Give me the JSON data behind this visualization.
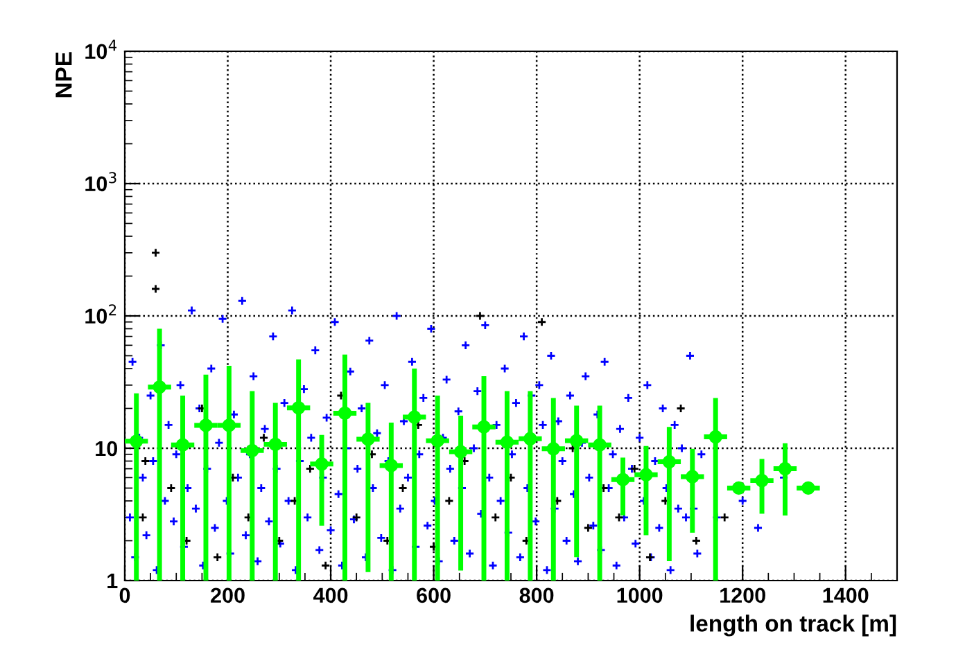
{
  "chart_data": {
    "type": "scatter",
    "xlabel": "length on track [m]",
    "ylabel": "NPE",
    "xlim": [
      0,
      1500
    ],
    "xticks": [
      0,
      200,
      400,
      600,
      800,
      1000,
      1200,
      1400
    ],
    "ylim": [
      1,
      10000
    ],
    "yticks": [
      1,
      10,
      {
        "value": 100,
        "label": "10$^{2}$"
      },
      {
        "value": 1000,
        "label": "10$^{3}$"
      },
      {
        "value": 10000,
        "label": "10$^{4}$"
      }
    ],
    "log": "y",
    "grid": true,
    "legend": false,
    "series": [
      {
        "marker": "cross",
        "color": "#0000ff",
        "x": [
          10,
          15,
          20,
          28,
          35,
          42,
          50,
          55,
          62,
          70,
          78,
          85,
          95,
          100,
          108,
          115,
          122,
          130,
          138,
          145,
          152,
          160,
          168,
          175,
          183,
          190,
          198,
          205,
          212,
          220,
          228,
          235,
          243,
          250,
          258,
          265,
          272,
          280,
          288,
          295,
          302,
          310,
          318,
          325,
          332,
          340,
          348,
          355,
          362,
          370,
          378,
          385,
          392,
          400,
          408,
          415,
          422,
          430,
          438,
          445,
          452,
          460,
          468,
          475,
          482,
          490,
          498,
          505,
          512,
          520,
          528,
          535,
          542,
          550,
          558,
          565,
          572,
          580,
          588,
          595,
          602,
          610,
          618,
          625,
          632,
          640,
          648,
          655,
          662,
          670,
          678,
          685,
          692,
          700,
          708,
          715,
          722,
          730,
          738,
          745,
          752,
          760,
          768,
          775,
          782,
          790,
          798,
          805,
          812,
          820,
          828,
          835,
          842,
          850,
          858,
          865,
          872,
          880,
          888,
          895,
          902,
          910,
          918,
          925,
          932,
          940,
          948,
          955,
          962,
          970,
          978,
          985,
          992,
          1000,
          1008,
          1015,
          1022,
          1030,
          1038,
          1045,
          1052,
          1060,
          1068,
          1075,
          1082,
          1090,
          1098,
          1105,
          1112,
          1120,
          1150,
          1200,
          1230,
          1280
        ],
        "values": [
          3,
          45,
          1.5,
          12,
          6,
          2.2,
          25,
          8,
          1.2,
          60,
          4,
          15,
          2.8,
          9,
          30,
          1.8,
          5,
          110,
          3.5,
          20,
          1.3,
          7,
          40,
          2.5,
          11,
          95,
          4,
          1.6,
          18,
          6,
          130,
          2.2,
          9,
          35,
          1.4,
          5,
          14,
          2.8,
          70,
          7,
          1.9,
          22,
          4,
          110,
          1.2,
          8,
          28,
          3,
          12,
          55,
          1.7,
          6,
          17,
          2.4,
          90,
          4.5,
          1.3,
          10,
          38,
          2.9,
          7,
          20,
          1.5,
          65,
          5,
          13,
          2.1,
          30,
          8,
          1.2,
          100,
          3.5,
          16,
          6,
          45,
          1.8,
          9,
          24,
          2.6,
          80,
          4,
          1.4,
          12,
          33,
          7,
          2,
          19,
          5,
          60,
          1.6,
          10,
          27,
          3.2,
          85,
          6,
          1.3,
          15,
          4,
          40,
          2.3,
          9,
          22,
          1.5,
          70,
          5,
          25,
          2.8,
          30,
          15,
          1.2,
          50,
          3.5,
          16,
          8,
          2,
          25,
          4.5,
          1.4,
          11,
          35,
          6,
          2.6,
          18,
          1.7,
          45,
          5,
          9,
          1.3,
          14,
          3,
          24,
          7,
          1.9,
          12,
          4,
          30,
          1.5,
          8,
          2.5,
          20,
          5,
          1.2,
          15,
          3.5,
          10,
          3,
          50,
          3.5,
          1.6,
          9,
          3,
          4,
          2.5,
          6
        ]
      },
      {
        "marker": "cross",
        "color": "#000000",
        "x": [
          60,
          60,
          35,
          40,
          90,
          120,
          150,
          180,
          210,
          240,
          270,
          300,
          330,
          360,
          390,
          420,
          450,
          480,
          510,
          540,
          570,
          600,
          630,
          660,
          690,
          720,
          750,
          780,
          810,
          840,
          870,
          900,
          930,
          960,
          990,
          1020,
          1050,
          1080,
          1110,
          1165
        ],
        "values": [
          300,
          160,
          3,
          8,
          5,
          2,
          20,
          1.5,
          6,
          3,
          12,
          2,
          4,
          7,
          1.3,
          25,
          3,
          9,
          2,
          5,
          15,
          1.8,
          4,
          8,
          100,
          3,
          6,
          2,
          90,
          4,
          10,
          2.5,
          5,
          3,
          7,
          1.5,
          4,
          20,
          2,
          3
        ]
      },
      {
        "marker": "circle",
        "color": "#00ff00",
        "x": [
          22.5,
          67.5,
          112.5,
          157.5,
          202.5,
          247.5,
          292.5,
          337.5,
          382.5,
          427.5,
          472.5,
          517.5,
          562.5,
          607.5,
          652.5,
          697.5,
          742.5,
          787.5,
          832.5,
          877.5,
          922.5,
          967.5,
          1012.5,
          1057.5,
          1102.5,
          1147.5,
          1192.5,
          1237.5,
          1282.5,
          1327.5
        ],
        "values": [
          11.3,
          29,
          10.6,
          14.9,
          14.9,
          9.6,
          10.7,
          20.2,
          7.6,
          18.4,
          11.7,
          7.4,
          17.2,
          11.4,
          9.4,
          14.5,
          11.1,
          11.8,
          9.9,
          11.4,
          10.6,
          5.8,
          6.3,
          7.9,
          6.1,
          12.2,
          5.0,
          5.7,
          7.0,
          5.0
        ],
        "errors": [
          [
            1,
            26
          ],
          [
            1,
            80
          ],
          [
            1,
            25
          ],
          [
            1,
            36
          ],
          [
            1,
            42
          ],
          [
            1,
            27
          ],
          [
            1,
            22
          ],
          [
            1,
            47
          ],
          [
            2.6,
            12.6
          ],
          [
            1,
            51
          ],
          [
            1.16,
            22
          ],
          [
            1,
            15.6
          ],
          [
            1,
            40
          ],
          [
            1,
            25
          ],
          [
            1.19,
            17.6
          ],
          [
            1,
            35
          ],
          [
            1,
            27
          ],
          [
            1,
            27
          ],
          [
            1,
            24
          ],
          [
            1.5,
            21
          ],
          [
            1,
            21
          ],
          [
            3.1,
            8.5
          ],
          [
            2.2,
            10.4
          ],
          [
            1.4,
            14.5
          ],
          [
            2.3,
            9.9
          ],
          [
            1,
            24
          ],
          null,
          [
            3.2,
            8.3
          ],
          [
            3.1,
            10.9
          ],
          null
        ],
        "xerrors": [
          22.5,
          22.5,
          22.5,
          22.5,
          22.5,
          22.5,
          22.5,
          22.5,
          22.5,
          22.5,
          22.5,
          22.5,
          22.5,
          22.5,
          22.5,
          22.5,
          22.5,
          22.5,
          22.5,
          22.5,
          22.5,
          22.5,
          22.5,
          22.5,
          22.5,
          22.5,
          22.5,
          22.5,
          22.5,
          22.5
        ]
      }
    ]
  }
}
